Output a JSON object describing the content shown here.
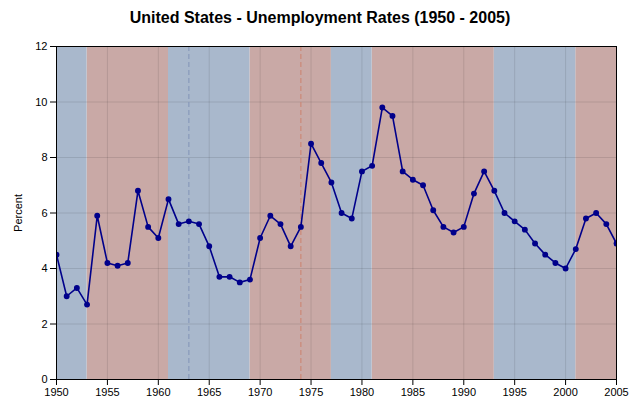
{
  "chart_data": {
    "type": "line",
    "title": "United States - Unemployment Rates (1950 - 2005)",
    "ylabel": "Percent",
    "x": [
      1950,
      1951,
      1952,
      1953,
      1954,
      1955,
      1956,
      1957,
      1958,
      1959,
      1960,
      1961,
      1962,
      1963,
      1964,
      1965,
      1966,
      1967,
      1968,
      1969,
      1970,
      1971,
      1972,
      1973,
      1974,
      1975,
      1976,
      1977,
      1978,
      1979,
      1980,
      1981,
      1982,
      1983,
      1984,
      1985,
      1986,
      1987,
      1988,
      1989,
      1990,
      1991,
      1992,
      1993,
      1994,
      1995,
      1996,
      1997,
      1998,
      1999,
      2000,
      2001,
      2002,
      2003,
      2004,
      2005
    ],
    "values": [
      4.5,
      3.0,
      3.3,
      2.7,
      5.9,
      4.2,
      4.1,
      4.2,
      6.8,
      5.5,
      5.1,
      6.5,
      5.6,
      5.7,
      5.6,
      4.8,
      3.7,
      3.7,
      3.5,
      3.6,
      5.1,
      5.9,
      5.6,
      4.8,
      5.5,
      8.5,
      7.8,
      7.1,
      6.0,
      5.8,
      7.5,
      7.7,
      9.8,
      9.5,
      7.5,
      7.2,
      7.0,
      6.1,
      5.5,
      5.3,
      5.5,
      6.7,
      7.5,
      6.8,
      6.0,
      5.7,
      5.4,
      4.9,
      4.5,
      4.2,
      4.0,
      4.7,
      5.8,
      6.0,
      5.6,
      4.9
    ],
    "color": "#00008B",
    "marker": "circle",
    "xlim": [
      1950,
      2005
    ],
    "ylim": [
      0,
      12
    ],
    "xticks": [
      1950,
      1955,
      1960,
      1965,
      1970,
      1975,
      1980,
      1985,
      1990,
      1995,
      2000,
      2005
    ],
    "yticks": [
      0,
      2,
      4,
      6,
      8,
      10,
      12
    ],
    "grid": true,
    "bands": [
      {
        "x": [
          1953,
          1961
        ],
        "color": "#C9A9A6"
      },
      {
        "x": [
          1969,
          1977
        ],
        "color": "#C9A9A6"
      },
      {
        "x": [
          1981,
          1993
        ],
        "color": "#C9A9A6"
      },
      {
        "x": [
          2001,
          2005
        ],
        "color": "#C9A9A6"
      },
      {
        "x": [
          1950,
          1953
        ],
        "color": "#A9B8CC"
      },
      {
        "x": [
          1961,
          1969
        ],
        "color": "#A9B8CC"
      },
      {
        "x": [
          1977,
          1981
        ],
        "color": "#A9B8CC"
      },
      {
        "x": [
          1993,
          2001
        ],
        "color": "#A9B8CC"
      }
    ],
    "vlines": [
      {
        "x": 1963,
        "color": "#8899BB",
        "line_style": "dashed"
      },
      {
        "x": 1974,
        "color": "#CC8877",
        "line_style": "dashed"
      }
    ]
  }
}
